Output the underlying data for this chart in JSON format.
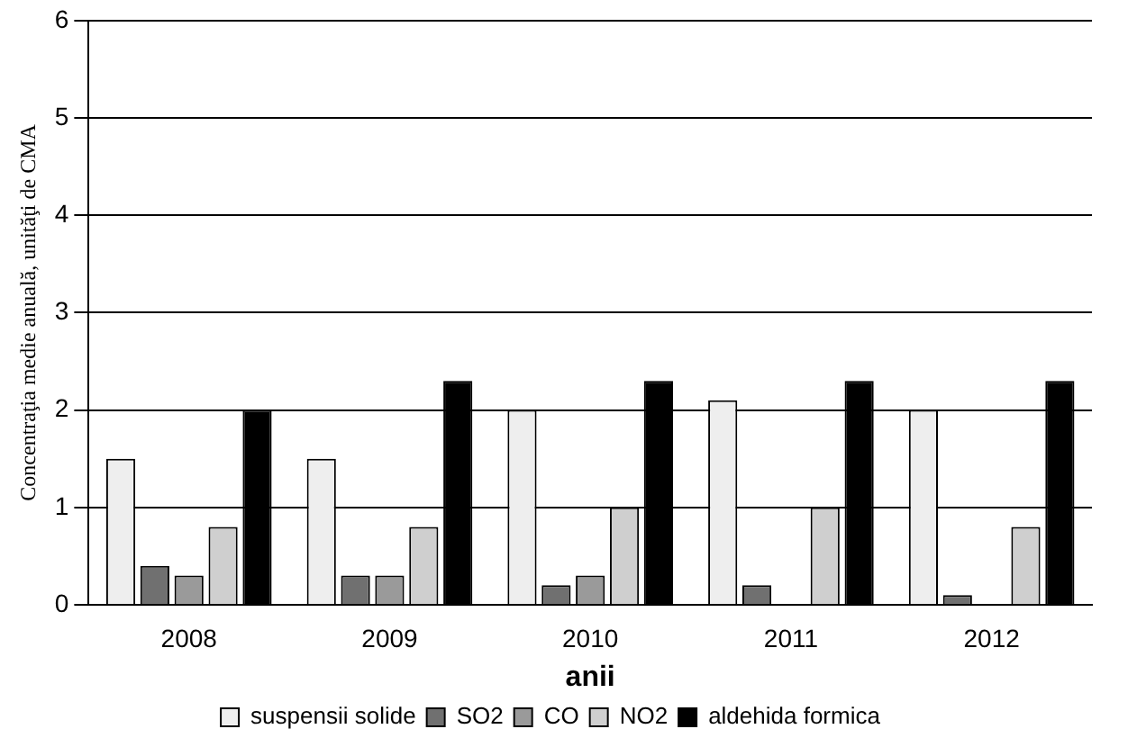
{
  "chart_data": {
    "type": "bar",
    "xlabel": "anii",
    "ylabel": "Concentraţia medie anuală, unităţi de CMA",
    "categories": [
      "2008",
      "2009",
      "2010",
      "2011",
      "2012"
    ],
    "series": [
      {
        "name": "suspensii solide",
        "color": "#eeeeee",
        "values": [
          1.5,
          1.5,
          2.0,
          2.1,
          2.0
        ]
      },
      {
        "name": "SO2",
        "color": "#707070",
        "values": [
          0.4,
          0.3,
          0.2,
          0.2,
          0.1
        ]
      },
      {
        "name": "CO",
        "color": "#9a9a9a",
        "values": [
          0.3,
          0.3,
          0.3,
          null,
          null
        ]
      },
      {
        "name": "NO2",
        "color": "#cfcfcf",
        "values": [
          0.8,
          0.8,
          1.0,
          1.0,
          0.8
        ]
      },
      {
        "name": "aldehida formica",
        "color": "#000000",
        "values": [
          2.0,
          2.3,
          2.3,
          2.3,
          2.3
        ]
      }
    ],
    "ylim": [
      0,
      6
    ],
    "yticks": [
      0,
      1,
      2,
      3,
      4,
      5,
      6
    ],
    "grid": "y",
    "legend": "bottom"
  }
}
